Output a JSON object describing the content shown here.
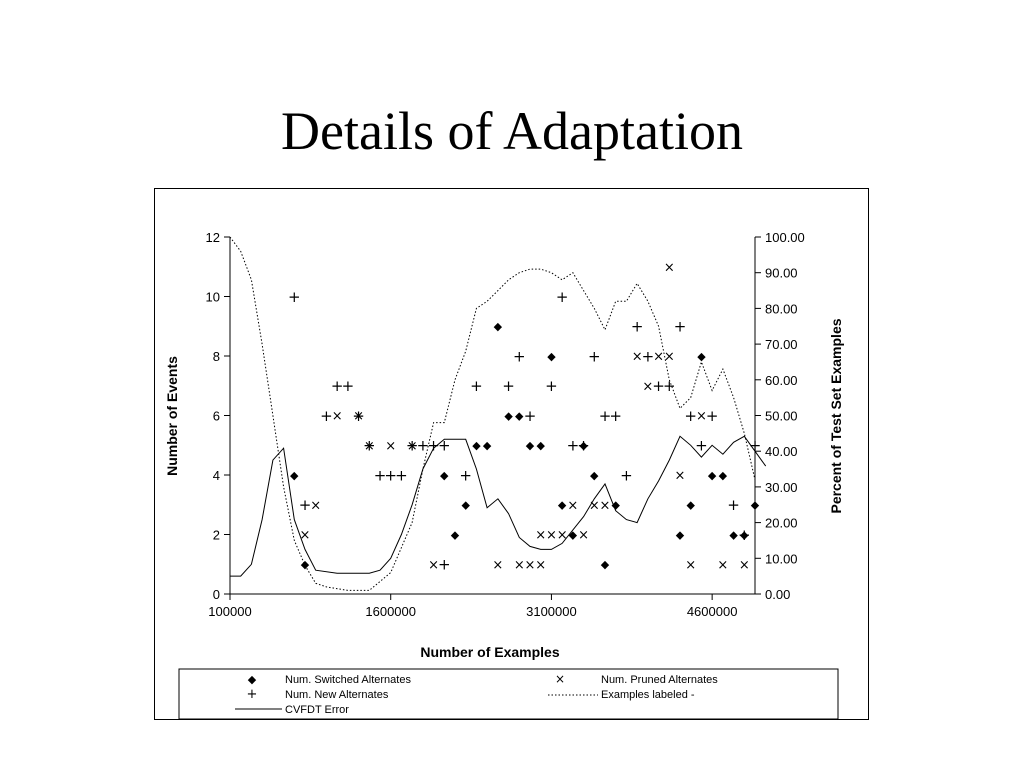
{
  "slide": {
    "title": "Details of Adaptation"
  },
  "chart_data": {
    "type": "scatter",
    "xlabel": "Number of Examples",
    "ylabel_left": "Number of Events",
    "ylabel_right": "Percent of Test Set Examples",
    "xlim": [
      100000,
      5000000
    ],
    "x_ticks": [
      100000,
      1600000,
      3100000,
      4600000
    ],
    "x_tick_labels": [
      "100000",
      "1600000",
      "3100000",
      "4600000"
    ],
    "ylim_left": [
      0,
      12
    ],
    "y_ticks_left": [
      "0",
      "2",
      "4",
      "6",
      "8",
      "10",
      "12"
    ],
    "ylim_right": [
      0,
      100
    ],
    "y_ticks_right": [
      "0.00",
      "10.00",
      "20.00",
      "30.00",
      "40.00",
      "50.00",
      "60.00",
      "70.00",
      "80.00",
      "90.00",
      "100.00"
    ],
    "grid": false,
    "legend_position": "bottom",
    "legend": {
      "switched": "Num. Switched Alternates",
      "pruned": "Num. Pruned Alternates",
      "new": "Num. New Alternates",
      "labeled": "Examples labeled -",
      "error": "CVFDT Error"
    },
    "series": [
      {
        "name": "Num. Switched Alternates",
        "axis": "left",
        "marker": "diamond",
        "points": [
          [
            700000,
            4
          ],
          [
            800000,
            1
          ],
          [
            2100000,
            4
          ],
          [
            2200000,
            2
          ],
          [
            2300000,
            3
          ],
          [
            2400000,
            5
          ],
          [
            2500000,
            5
          ],
          [
            2600000,
            9
          ],
          [
            2700000,
            6
          ],
          [
            2800000,
            6
          ],
          [
            2900000,
            5
          ],
          [
            3000000,
            5
          ],
          [
            3100000,
            8
          ],
          [
            3200000,
            3
          ],
          [
            3300000,
            2
          ],
          [
            3400000,
            5
          ],
          [
            3500000,
            4
          ],
          [
            3600000,
            1
          ],
          [
            3700000,
            3
          ],
          [
            4300000,
            2
          ],
          [
            4400000,
            3
          ],
          [
            4500000,
            8
          ],
          [
            4600000,
            4
          ],
          [
            4700000,
            4
          ],
          [
            4800000,
            2
          ],
          [
            4900000,
            2
          ],
          [
            5000000,
            3
          ]
        ]
      },
      {
        "name": "Num. Pruned Alternates",
        "axis": "left",
        "marker": "cross",
        "points": [
          [
            800000,
            2
          ],
          [
            900000,
            3
          ],
          [
            1100000,
            6
          ],
          [
            1300000,
            6
          ],
          [
            1400000,
            5
          ],
          [
            1600000,
            5
          ],
          [
            1800000,
            5
          ],
          [
            2000000,
            1
          ],
          [
            2600000,
            1
          ],
          [
            2800000,
            1
          ],
          [
            2900000,
            1
          ],
          [
            3000000,
            1
          ],
          [
            3000000,
            2
          ],
          [
            3100000,
            2
          ],
          [
            3200000,
            2
          ],
          [
            3300000,
            3
          ],
          [
            3400000,
            2
          ],
          [
            3500000,
            3
          ],
          [
            3600000,
            3
          ],
          [
            3900000,
            8
          ],
          [
            4000000,
            7
          ],
          [
            4100000,
            8
          ],
          [
            4200000,
            11
          ],
          [
            4200000,
            8
          ],
          [
            4300000,
            4
          ],
          [
            4400000,
            1
          ],
          [
            4500000,
            6
          ],
          [
            4700000,
            1
          ],
          [
            4900000,
            1
          ]
        ]
      },
      {
        "name": "Num. New Alternates",
        "axis": "left",
        "marker": "plus",
        "points": [
          [
            700000,
            10
          ],
          [
            800000,
            3
          ],
          [
            1000000,
            6
          ],
          [
            1100000,
            7
          ],
          [
            1200000,
            7
          ],
          [
            1300000,
            6
          ],
          [
            1400000,
            5
          ],
          [
            1500000,
            4
          ],
          [
            1600000,
            4
          ],
          [
            1700000,
            4
          ],
          [
            1800000,
            5
          ],
          [
            1900000,
            5
          ],
          [
            2000000,
            5
          ],
          [
            2100000,
            5
          ],
          [
            2100000,
            1
          ],
          [
            2300000,
            4
          ],
          [
            2400000,
            7
          ],
          [
            2700000,
            7
          ],
          [
            2800000,
            8
          ],
          [
            2900000,
            6
          ],
          [
            3100000,
            7
          ],
          [
            3200000,
            10
          ],
          [
            3300000,
            5
          ],
          [
            3400000,
            5
          ],
          [
            3500000,
            8
          ],
          [
            3600000,
            6
          ],
          [
            3700000,
            6
          ],
          [
            3800000,
            4
          ],
          [
            3900000,
            9
          ],
          [
            4000000,
            8
          ],
          [
            4100000,
            7
          ],
          [
            4200000,
            7
          ],
          [
            4300000,
            9
          ],
          [
            4400000,
            6
          ],
          [
            4500000,
            5
          ],
          [
            4600000,
            6
          ],
          [
            4800000,
            3
          ],
          [
            4900000,
            2
          ],
          [
            5000000,
            5
          ]
        ]
      },
      {
        "name": "Examples labeled -",
        "axis": "right",
        "style": "dotted",
        "points": [
          [
            100000,
            100
          ],
          [
            200000,
            96
          ],
          [
            300000,
            88
          ],
          [
            400000,
            70
          ],
          [
            500000,
            50
          ],
          [
            600000,
            30
          ],
          [
            700000,
            15
          ],
          [
            800000,
            8
          ],
          [
            900000,
            3
          ],
          [
            1000000,
            2
          ],
          [
            1200000,
            1
          ],
          [
            1400000,
            1
          ],
          [
            1600000,
            6
          ],
          [
            1800000,
            20
          ],
          [
            1900000,
            35
          ],
          [
            2000000,
            48
          ],
          [
            2100000,
            48
          ],
          [
            2200000,
            60
          ],
          [
            2300000,
            68
          ],
          [
            2400000,
            80
          ],
          [
            2500000,
            82
          ],
          [
            2600000,
            85
          ],
          [
            2700000,
            88
          ],
          [
            2800000,
            90
          ],
          [
            2900000,
            91
          ],
          [
            3000000,
            91
          ],
          [
            3100000,
            90
          ],
          [
            3200000,
            88
          ],
          [
            3300000,
            90
          ],
          [
            3400000,
            85
          ],
          [
            3500000,
            80
          ],
          [
            3600000,
            74
          ],
          [
            3700000,
            82
          ],
          [
            3800000,
            82
          ],
          [
            3900000,
            87
          ],
          [
            4000000,
            82
          ],
          [
            4100000,
            75
          ],
          [
            4200000,
            60
          ],
          [
            4300000,
            52
          ],
          [
            4400000,
            55
          ],
          [
            4500000,
            65
          ],
          [
            4600000,
            57
          ],
          [
            4700000,
            63
          ],
          [
            4800000,
            55
          ],
          [
            4900000,
            45
          ],
          [
            5000000,
            32
          ]
        ]
      },
      {
        "name": "CVFDT Error",
        "axis": "left",
        "style": "solid",
        "points": [
          [
            100000,
            0.6
          ],
          [
            200000,
            0.6
          ],
          [
            300000,
            1
          ],
          [
            400000,
            2.5
          ],
          [
            500000,
            4.5
          ],
          [
            600000,
            4.9
          ],
          [
            700000,
            2.5
          ],
          [
            800000,
            1.5
          ],
          [
            900000,
            0.8
          ],
          [
            1100000,
            0.7
          ],
          [
            1400000,
            0.7
          ],
          [
            1500000,
            0.8
          ],
          [
            1600000,
            1.2
          ],
          [
            1700000,
            2.0
          ],
          [
            1800000,
            3.0
          ],
          [
            1900000,
            4.2
          ],
          [
            2000000,
            4.9
          ],
          [
            2100000,
            5.2
          ],
          [
            2300000,
            5.2
          ],
          [
            2400000,
            4.2
          ],
          [
            2500000,
            2.9
          ],
          [
            2600000,
            3.2
          ],
          [
            2700000,
            2.7
          ],
          [
            2800000,
            1.9
          ],
          [
            2900000,
            1.6
          ],
          [
            3000000,
            1.5
          ],
          [
            3100000,
            1.5
          ],
          [
            3200000,
            1.7
          ],
          [
            3400000,
            2.6
          ],
          [
            3500000,
            3.2
          ],
          [
            3600000,
            3.7
          ],
          [
            3700000,
            2.8
          ],
          [
            3800000,
            2.5
          ],
          [
            3900000,
            2.4
          ],
          [
            4000000,
            3.2
          ],
          [
            4100000,
            3.8
          ],
          [
            4200000,
            4.5
          ],
          [
            4300000,
            5.3
          ],
          [
            4400000,
            5.0
          ],
          [
            4500000,
            4.6
          ],
          [
            4600000,
            5.0
          ],
          [
            4700000,
            4.7
          ],
          [
            4800000,
            5.1
          ],
          [
            4900000,
            5.3
          ],
          [
            5000000,
            4.8
          ],
          [
            5100000,
            4.3
          ]
        ]
      }
    ]
  }
}
